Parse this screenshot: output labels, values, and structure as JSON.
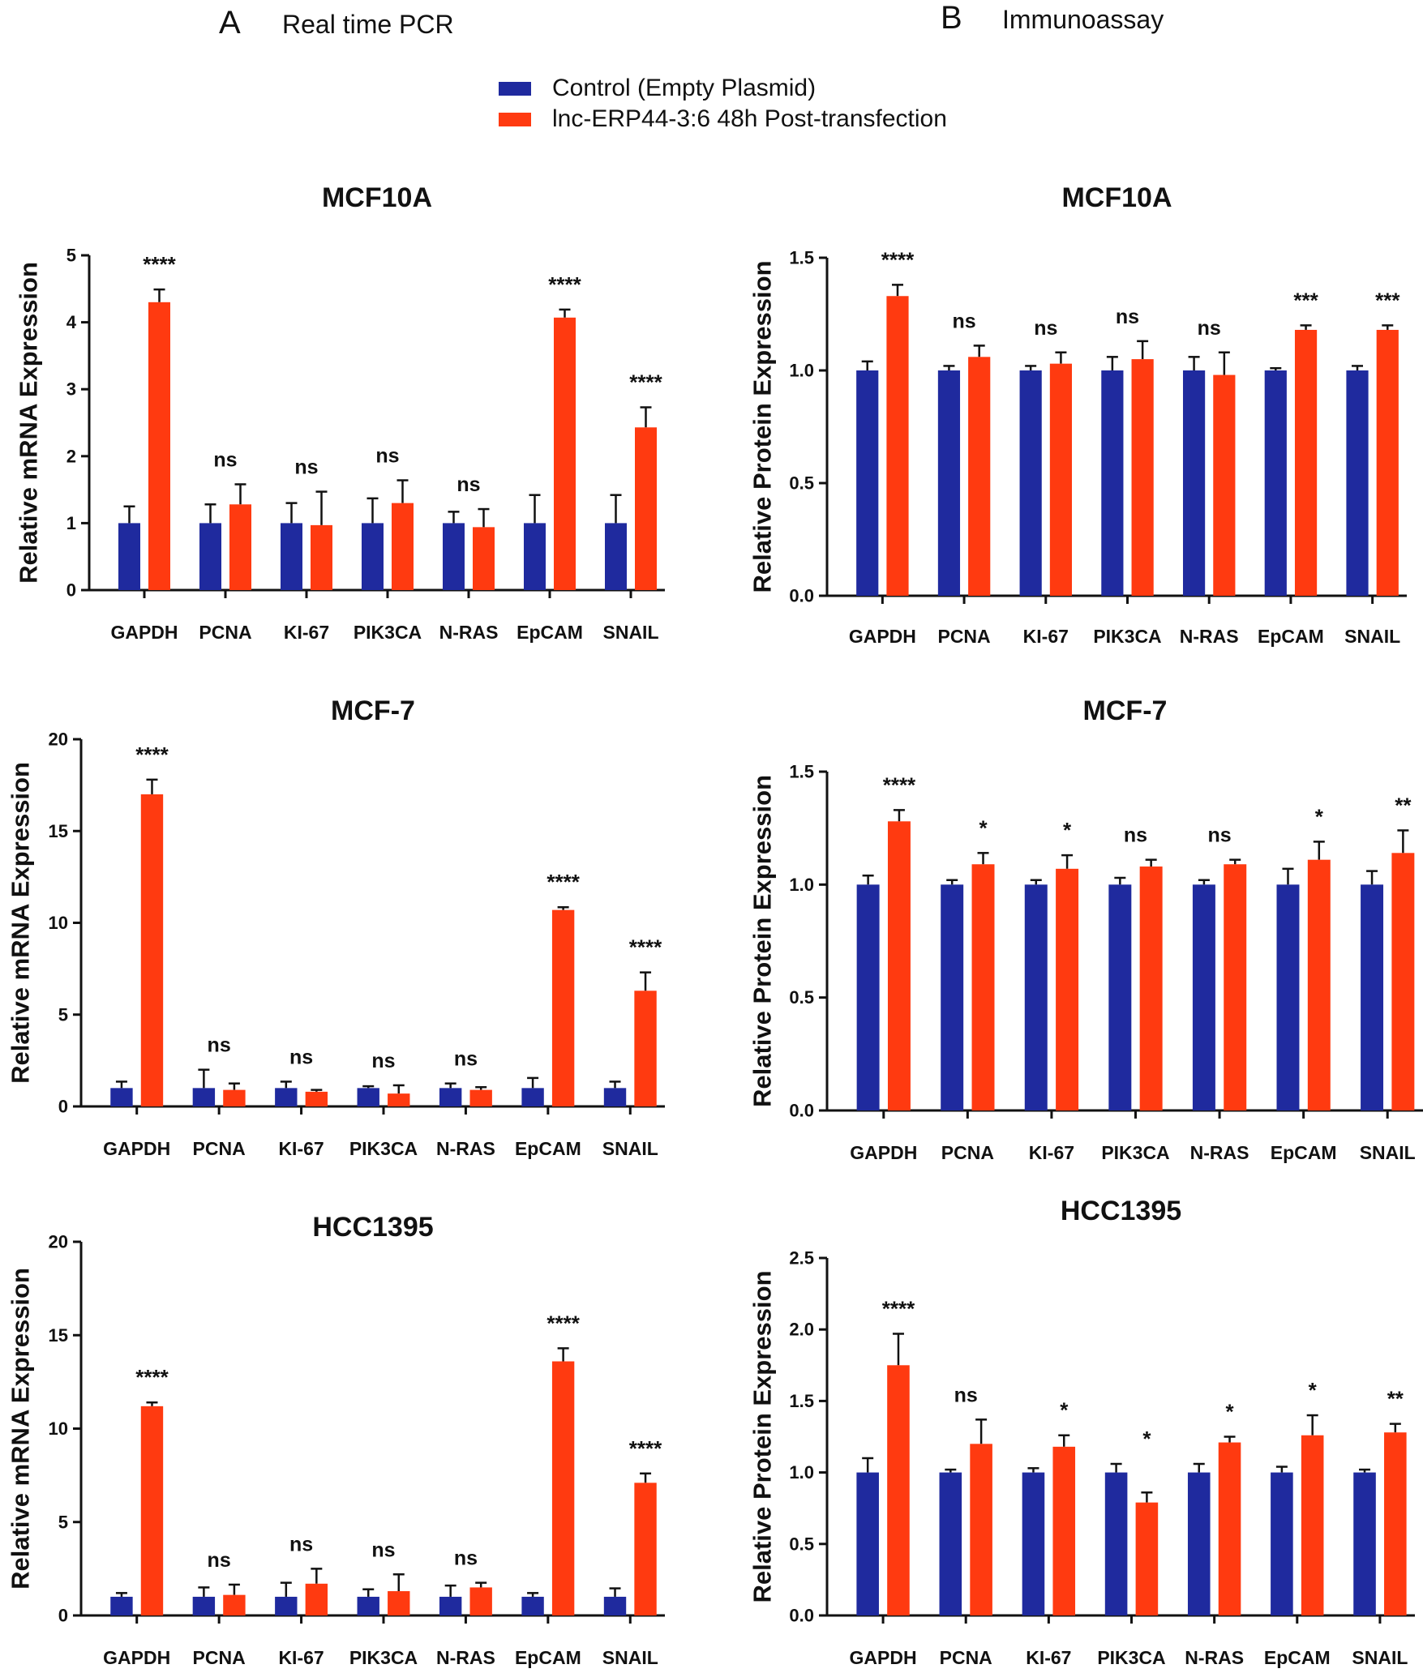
{
  "panels": {
    "a": {
      "letter": "A",
      "title": "Real time PCR"
    },
    "b": {
      "letter": "B",
      "title": "Immunoassay"
    }
  },
  "legend": {
    "items": [
      {
        "label": "Control (Empty Plasmid)",
        "color": "#1f2a9e"
      },
      {
        "label": "lnc-ERP44-3:6 48h Post-transfection",
        "color": "#ff3a10"
      }
    ]
  },
  "colors": {
    "control": "#1f2a9e",
    "treated": "#ff3a10",
    "axis": "#111111"
  },
  "chart_data": [
    {
      "id": "pcr-mcf10a",
      "type": "bar",
      "title": "MCF10A",
      "ylabel": "Relative mRNA Expression",
      "categories": [
        "GAPDH",
        "PCNA",
        "KI-67",
        "PIK3CA",
        "N-RAS",
        "EpCAM",
        "SNAIL"
      ],
      "ylim": [
        0,
        5
      ],
      "yticks": [
        "0",
        "1",
        "2",
        "3",
        "4",
        "5"
      ],
      "ytick_values": [
        0,
        1,
        2,
        3,
        4,
        5
      ],
      "series": [
        {
          "name": "Control (Empty Plasmid)",
          "values": [
            1,
            1,
            1,
            1,
            1,
            1,
            1
          ],
          "errors": [
            0.25,
            0.28,
            0.3,
            0.37,
            0.17,
            0.42,
            0.42
          ]
        },
        {
          "name": "lnc-ERP44-3:6 48h Post-transfection",
          "values": [
            4.3,
            1.28,
            0.97,
            1.3,
            0.94,
            4.07,
            2.43
          ],
          "errors": [
            0.19,
            0.3,
            0.5,
            0.34,
            0.27,
            0.12,
            0.3
          ]
        }
      ],
      "significance": [
        "****",
        "ns",
        "ns",
        "ns",
        "ns",
        "****",
        "****"
      ]
    },
    {
      "id": "pcr-mcf7",
      "type": "bar",
      "title": "MCF-7",
      "ylabel": "Relative mRNA Expression",
      "categories": [
        "GAPDH",
        "PCNA",
        "KI-67",
        "PIK3CA",
        "N-RAS",
        "EpCAM",
        "SNAIL"
      ],
      "ylim": [
        0,
        20
      ],
      "yticks": [
        "0",
        "5",
        "10",
        "15",
        "20"
      ],
      "ytick_values": [
        0,
        5,
        10,
        15,
        20
      ],
      "series": [
        {
          "name": "Control (Empty Plasmid)",
          "values": [
            1,
            1,
            1,
            1,
            1,
            1,
            1
          ],
          "errors": [
            0.35,
            1.0,
            0.35,
            0.1,
            0.25,
            0.55,
            0.35
          ]
        },
        {
          "name": "lnc-ERP44-3:6 48h Post-transfection",
          "values": [
            17.0,
            0.9,
            0.8,
            0.7,
            0.9,
            10.7,
            6.3
          ],
          "errors": [
            0.8,
            0.35,
            0.1,
            0.45,
            0.15,
            0.15,
            1.0
          ]
        }
      ],
      "significance": [
        "****",
        "ns",
        "ns",
        "ns",
        "ns",
        "****",
        "****"
      ]
    },
    {
      "id": "pcr-hcc1395",
      "type": "bar",
      "title": "HCC1395",
      "ylabel": "Relative mRNA Expression",
      "categories": [
        "GAPDH",
        "PCNA",
        "KI-67",
        "PIK3CA",
        "N-RAS",
        "EpCAM",
        "SNAIL"
      ],
      "ylim": [
        0,
        20
      ],
      "yticks": [
        "0",
        "5",
        "10",
        "15",
        "20"
      ],
      "ytick_values": [
        0,
        5,
        10,
        15,
        20
      ],
      "series": [
        {
          "name": "Control (Empty Plasmid)",
          "values": [
            1,
            1,
            1,
            1,
            1,
            1,
            1
          ],
          "errors": [
            0.2,
            0.5,
            0.75,
            0.4,
            0.6,
            0.2,
            0.45
          ]
        },
        {
          "name": "lnc-ERP44-3:6 48h Post-transfection",
          "values": [
            11.2,
            1.1,
            1.7,
            1.3,
            1.5,
            13.6,
            7.1
          ],
          "errors": [
            0.2,
            0.55,
            0.8,
            0.9,
            0.25,
            0.7,
            0.5
          ]
        }
      ],
      "significance": [
        "****",
        "ns",
        "ns",
        "ns",
        "ns",
        "****",
        "****"
      ]
    },
    {
      "id": "ia-mcf10a",
      "type": "bar",
      "title": "MCF10A",
      "ylabel": "Relative Protein Expression",
      "categories": [
        "GAPDH",
        "PCNA",
        "KI-67",
        "PIK3CA",
        "N-RAS",
        "EpCAM",
        "SNAIL"
      ],
      "ylim": [
        0,
        1.5
      ],
      "yticks": [
        "0.0",
        "0.5",
        "1.0",
        "1.5"
      ],
      "ytick_values": [
        0,
        0.5,
        1.0,
        1.5
      ],
      "series": [
        {
          "name": "Control (Empty Plasmid)",
          "values": [
            1,
            1,
            1,
            1,
            1,
            1,
            1
          ],
          "errors": [
            0.04,
            0.02,
            0.02,
            0.06,
            0.06,
            0.01,
            0.02
          ]
        },
        {
          "name": "lnc-ERP44-3:6 48h Post-transfection",
          "values": [
            1.33,
            1.06,
            1.03,
            1.05,
            0.98,
            1.18,
            1.18
          ],
          "errors": [
            0.05,
            0.05,
            0.05,
            0.08,
            0.1,
            0.02,
            0.02
          ]
        }
      ],
      "significance": [
        "****",
        "ns",
        "ns",
        "ns",
        "ns",
        "***",
        "***"
      ]
    },
    {
      "id": "ia-mcf7",
      "type": "bar",
      "title": "MCF-7",
      "ylabel": "Relative Protein Expression",
      "categories": [
        "GAPDH",
        "PCNA",
        "KI-67",
        "PIK3CA",
        "N-RAS",
        "EpCAM",
        "SNAIL"
      ],
      "ylim": [
        0,
        1.5
      ],
      "yticks": [
        "0.0",
        "0.5",
        "1.0",
        "1.5"
      ],
      "ytick_values": [
        0,
        0.5,
        1.0,
        1.5
      ],
      "series": [
        {
          "name": "Control (Empty Plasmid)",
          "values": [
            1,
            1,
            1,
            1,
            1,
            1,
            1
          ],
          "errors": [
            0.04,
            0.02,
            0.02,
            0.03,
            0.02,
            0.07,
            0.06
          ]
        },
        {
          "name": "lnc-ERP44-3:6 48h Post-transfection",
          "values": [
            1.28,
            1.09,
            1.07,
            1.08,
            1.09,
            1.11,
            1.14
          ],
          "errors": [
            0.05,
            0.05,
            0.06,
            0.03,
            0.02,
            0.08,
            0.1
          ]
        }
      ],
      "significance": [
        "****",
        "*",
        "*",
        "ns",
        "ns",
        "*",
        "**"
      ]
    },
    {
      "id": "ia-hcc1395",
      "type": "bar",
      "title": "HCC1395",
      "ylabel": "Relative Protein Expression",
      "categories": [
        "GAPDH",
        "PCNA",
        "KI-67",
        "PIK3CA",
        "N-RAS",
        "EpCAM",
        "SNAIL"
      ],
      "ylim": [
        0,
        2.5
      ],
      "yticks": [
        "0.0",
        "0.5",
        "1.0",
        "1.5",
        "2.0",
        "2.5"
      ],
      "ytick_values": [
        0,
        0.5,
        1.0,
        1.5,
        2.0,
        2.5
      ],
      "series": [
        {
          "name": "Control (Empty Plasmid)",
          "values": [
            1,
            1,
            1,
            1,
            1,
            1,
            1
          ],
          "errors": [
            0.1,
            0.02,
            0.03,
            0.06,
            0.06,
            0.04,
            0.02
          ]
        },
        {
          "name": "lnc-ERP44-3:6 48h Post-transfection",
          "values": [
            1.75,
            1.2,
            1.18,
            0.79,
            1.21,
            1.26,
            1.28
          ],
          "errors": [
            0.22,
            0.17,
            0.08,
            0.07,
            0.04,
            0.14,
            0.06
          ]
        }
      ],
      "significance": [
        "****",
        "ns",
        "*",
        "*",
        "*",
        "*",
        "**"
      ]
    }
  ]
}
